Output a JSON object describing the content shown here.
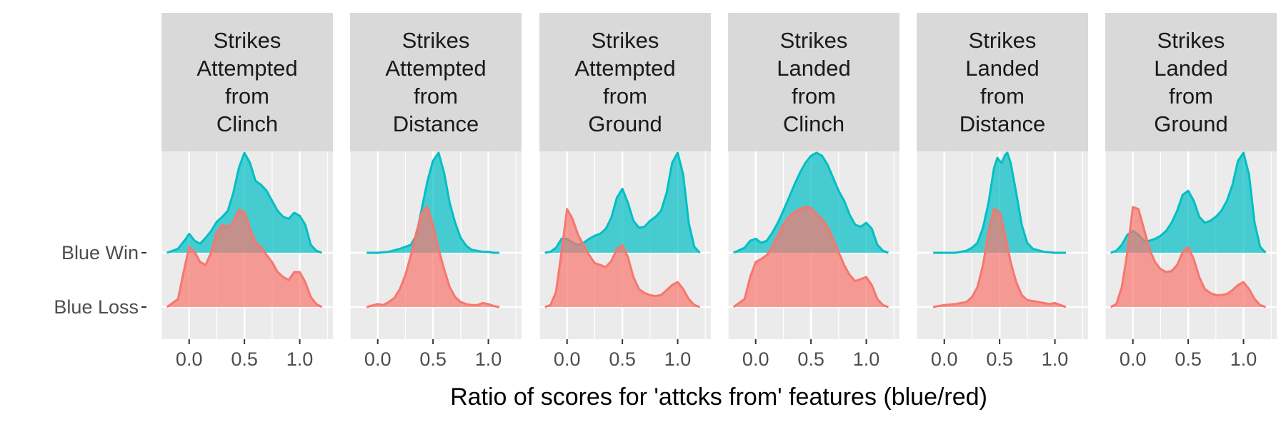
{
  "colors": {
    "win": "#00BFC4",
    "loss": "#F8766D",
    "panel_bg": "#EBEBEB",
    "strip_bg": "#D9D9D9",
    "grid": "#FFFFFF"
  },
  "chart_data": {
    "type": "ridgeline-density",
    "x_axis_title": "Ratio of scores for 'attcks from' features (blue/red)",
    "x_ticks": [
      0.0,
      0.5,
      1.0
    ],
    "x_tick_labels": [
      "0.0",
      "0.5",
      "1.0"
    ],
    "y_categories": [
      "Blue Win",
      "Blue Loss"
    ],
    "grid": true,
    "legend": "none",
    "panels": [
      {
        "title_lines": [
          "Strikes",
          "Attempted",
          "from",
          "Clinch"
        ],
        "xlim": [
          -0.25,
          1.3
        ],
        "series": [
          {
            "name": "Blue Win",
            "x": [
              -0.2,
              -0.1,
              -0.03,
              0.0,
              0.05,
              0.1,
              0.15,
              0.2,
              0.25,
              0.3,
              0.35,
              0.4,
              0.45,
              0.5,
              0.55,
              0.6,
              0.65,
              0.7,
              0.75,
              0.8,
              0.85,
              0.9,
              0.95,
              1.0,
              1.05,
              1.1,
              1.15,
              1.2
            ],
            "y": [
              0.0,
              0.04,
              0.14,
              0.19,
              0.12,
              0.09,
              0.15,
              0.22,
              0.31,
              0.36,
              0.42,
              0.6,
              0.85,
              1.0,
              0.9,
              0.72,
              0.68,
              0.62,
              0.52,
              0.42,
              0.36,
              0.34,
              0.4,
              0.37,
              0.28,
              0.08,
              0.02,
              0.0
            ]
          },
          {
            "name": "Blue Loss",
            "x": [
              -0.2,
              -0.1,
              -0.05,
              0.0,
              0.05,
              0.1,
              0.15,
              0.2,
              0.25,
              0.3,
              0.35,
              0.4,
              0.45,
              0.5,
              0.55,
              0.6,
              0.65,
              0.7,
              0.75,
              0.8,
              0.85,
              0.9,
              0.95,
              1.0,
              1.05,
              1.1,
              1.15,
              1.2
            ],
            "y": [
              0.0,
              0.08,
              0.35,
              0.6,
              0.55,
              0.45,
              0.42,
              0.55,
              0.75,
              0.82,
              0.8,
              0.85,
              0.97,
              0.95,
              0.78,
              0.65,
              0.6,
              0.52,
              0.45,
              0.35,
              0.3,
              0.27,
              0.35,
              0.35,
              0.25,
              0.1,
              0.03,
              0.0
            ]
          }
        ]
      },
      {
        "title_lines": [
          "Strikes",
          "Attempted",
          "from",
          "Distance"
        ],
        "xlim": [
          -0.25,
          1.3
        ],
        "series": [
          {
            "name": "Blue Win",
            "x": [
              -0.1,
              0.0,
              0.1,
              0.2,
              0.25,
              0.3,
              0.35,
              0.4,
              0.45,
              0.5,
              0.55,
              0.6,
              0.65,
              0.7,
              0.75,
              0.8,
              0.85,
              0.9,
              0.95,
              1.0,
              1.05,
              1.1
            ],
            "y": [
              0.0,
              0.0,
              0.01,
              0.04,
              0.06,
              0.08,
              0.18,
              0.45,
              0.72,
              0.92,
              1.0,
              0.8,
              0.5,
              0.3,
              0.15,
              0.07,
              0.03,
              0.02,
              0.01,
              0.01,
              0.0,
              0.0
            ]
          },
          {
            "name": "Blue Loss",
            "x": [
              -0.1,
              0.0,
              0.05,
              0.1,
              0.15,
              0.2,
              0.25,
              0.3,
              0.35,
              0.4,
              0.45,
              0.5,
              0.55,
              0.6,
              0.65,
              0.7,
              0.75,
              0.8,
              0.85,
              0.9,
              0.95,
              1.0,
              1.05,
              1.1
            ],
            "y": [
              0.0,
              0.03,
              0.02,
              0.05,
              0.09,
              0.18,
              0.32,
              0.52,
              0.75,
              0.95,
              1.0,
              0.82,
              0.58,
              0.38,
              0.2,
              0.1,
              0.05,
              0.03,
              0.02,
              0.02,
              0.04,
              0.03,
              0.01,
              0.0
            ]
          }
        ]
      },
      {
        "title_lines": [
          "Strikes",
          "Attempted",
          "from",
          "Ground"
        ],
        "xlim": [
          -0.25,
          1.3
        ],
        "series": [
          {
            "name": "Blue Win",
            "x": [
              -0.2,
              -0.15,
              -0.1,
              -0.05,
              0.0,
              0.05,
              0.1,
              0.15,
              0.2,
              0.25,
              0.3,
              0.35,
              0.4,
              0.45,
              0.5,
              0.55,
              0.6,
              0.65,
              0.7,
              0.75,
              0.8,
              0.85,
              0.9,
              0.95,
              1.0,
              1.05,
              1.1,
              1.15,
              1.2
            ],
            "y": [
              0.0,
              0.01,
              0.05,
              0.14,
              0.14,
              0.1,
              0.08,
              0.1,
              0.14,
              0.17,
              0.19,
              0.24,
              0.35,
              0.55,
              0.64,
              0.5,
              0.32,
              0.25,
              0.26,
              0.32,
              0.36,
              0.42,
              0.6,
              0.9,
              1.0,
              0.78,
              0.3,
              0.06,
              0.0
            ]
          },
          {
            "name": "Blue Loss",
            "x": [
              -0.2,
              -0.15,
              -0.1,
              -0.05,
              0.0,
              0.05,
              0.1,
              0.15,
              0.2,
              0.25,
              0.3,
              0.35,
              0.4,
              0.45,
              0.5,
              0.55,
              0.6,
              0.65,
              0.7,
              0.75,
              0.8,
              0.85,
              0.9,
              0.95,
              1.0,
              1.05,
              1.1,
              1.15,
              1.2
            ],
            "y": [
              0.0,
              0.02,
              0.15,
              0.55,
              0.98,
              0.88,
              0.72,
              0.62,
              0.52,
              0.44,
              0.42,
              0.4,
              0.46,
              0.58,
              0.62,
              0.5,
              0.3,
              0.18,
              0.14,
              0.12,
              0.11,
              0.12,
              0.17,
              0.22,
              0.25,
              0.18,
              0.08,
              0.02,
              0.0
            ]
          }
        ]
      },
      {
        "title_lines": [
          "Strikes",
          "Landed",
          "from",
          "Clinch"
        ],
        "xlim": [
          -0.25,
          1.3
        ],
        "series": [
          {
            "name": "Blue Win",
            "x": [
              -0.2,
              -0.1,
              -0.05,
              0.0,
              0.05,
              0.1,
              0.15,
              0.2,
              0.25,
              0.3,
              0.35,
              0.4,
              0.45,
              0.5,
              0.55,
              0.6,
              0.65,
              0.7,
              0.75,
              0.8,
              0.85,
              0.9,
              0.95,
              1.0,
              1.05,
              1.1,
              1.15,
              1.2
            ],
            "y": [
              0.0,
              0.05,
              0.12,
              0.14,
              0.1,
              0.12,
              0.2,
              0.3,
              0.42,
              0.55,
              0.68,
              0.8,
              0.9,
              0.97,
              1.0,
              0.97,
              0.88,
              0.75,
              0.62,
              0.52,
              0.38,
              0.28,
              0.26,
              0.3,
              0.24,
              0.08,
              0.02,
              0.0
            ]
          },
          {
            "name": "Blue Loss",
            "x": [
              -0.2,
              -0.1,
              -0.05,
              0.0,
              0.05,
              0.1,
              0.15,
              0.2,
              0.25,
              0.3,
              0.35,
              0.4,
              0.45,
              0.5,
              0.55,
              0.6,
              0.65,
              0.7,
              0.75,
              0.8,
              0.85,
              0.9,
              0.95,
              1.0,
              1.05,
              1.1,
              1.15,
              1.2
            ],
            "y": [
              0.0,
              0.08,
              0.3,
              0.45,
              0.48,
              0.52,
              0.6,
              0.72,
              0.82,
              0.9,
              0.95,
              0.98,
              1.0,
              0.99,
              0.93,
              0.88,
              0.8,
              0.68,
              0.55,
              0.42,
              0.32,
              0.26,
              0.28,
              0.3,
              0.22,
              0.08,
              0.02,
              0.0
            ]
          }
        ]
      },
      {
        "title_lines": [
          "Strikes",
          "Landed",
          "from",
          "Distance"
        ],
        "xlim": [
          -0.25,
          1.3
        ],
        "series": [
          {
            "name": "Blue Win",
            "x": [
              -0.1,
              0.0,
              0.1,
              0.2,
              0.25,
              0.3,
              0.35,
              0.4,
              0.45,
              0.48,
              0.5,
              0.52,
              0.55,
              0.57,
              0.6,
              0.65,
              0.7,
              0.75,
              0.8,
              0.9,
              1.0,
              1.1
            ],
            "y": [
              0.0,
              0.0,
              0.0,
              0.02,
              0.05,
              0.1,
              0.25,
              0.5,
              0.85,
              0.95,
              0.92,
              0.9,
              0.98,
              1.0,
              0.9,
              0.6,
              0.28,
              0.1,
              0.04,
              0.01,
              0.0,
              0.0
            ]
          },
          {
            "name": "Blue Loss",
            "x": [
              -0.1,
              0.0,
              0.1,
              0.2,
              0.25,
              0.3,
              0.35,
              0.4,
              0.45,
              0.5,
              0.55,
              0.6,
              0.65,
              0.7,
              0.75,
              0.8,
              0.85,
              0.9,
              0.95,
              1.0,
              1.05,
              1.1
            ],
            "y": [
              0.0,
              0.02,
              0.03,
              0.05,
              0.1,
              0.2,
              0.42,
              0.75,
              0.98,
              0.95,
              0.72,
              0.45,
              0.25,
              0.12,
              0.07,
              0.06,
              0.05,
              0.04,
              0.03,
              0.04,
              0.02,
              0.0
            ]
          }
        ]
      },
      {
        "title_lines": [
          "Strikes",
          "Landed",
          "from",
          "Ground"
        ],
        "xlim": [
          -0.25,
          1.3
        ],
        "series": [
          {
            "name": "Blue Win",
            "x": [
              -0.2,
              -0.15,
              -0.1,
              -0.05,
              0.0,
              0.05,
              0.1,
              0.15,
              0.2,
              0.25,
              0.3,
              0.35,
              0.4,
              0.45,
              0.5,
              0.55,
              0.6,
              0.65,
              0.7,
              0.75,
              0.8,
              0.85,
              0.9,
              0.95,
              1.0,
              1.05,
              1.1,
              1.15,
              1.2
            ],
            "y": [
              0.0,
              0.02,
              0.08,
              0.18,
              0.22,
              0.18,
              0.12,
              0.12,
              0.14,
              0.17,
              0.22,
              0.3,
              0.42,
              0.58,
              0.62,
              0.52,
              0.36,
              0.3,
              0.32,
              0.36,
              0.42,
              0.52,
              0.68,
              0.92,
              1.0,
              0.78,
              0.3,
              0.06,
              0.0
            ]
          },
          {
            "name": "Blue Loss",
            "x": [
              -0.2,
              -0.15,
              -0.1,
              -0.05,
              0.0,
              0.05,
              0.1,
              0.15,
              0.2,
              0.25,
              0.3,
              0.35,
              0.4,
              0.45,
              0.5,
              0.55,
              0.6,
              0.65,
              0.7,
              0.75,
              0.8,
              0.85,
              0.9,
              0.95,
              1.0,
              1.05,
              1.1,
              1.15,
              1.2
            ],
            "y": [
              0.0,
              0.03,
              0.2,
              0.55,
              1.0,
              0.98,
              0.78,
              0.58,
              0.45,
              0.38,
              0.35,
              0.36,
              0.42,
              0.55,
              0.6,
              0.48,
              0.3,
              0.18,
              0.14,
              0.12,
              0.12,
              0.13,
              0.17,
              0.22,
              0.25,
              0.18,
              0.08,
              0.02,
              0.0
            ]
          }
        ]
      }
    ]
  }
}
